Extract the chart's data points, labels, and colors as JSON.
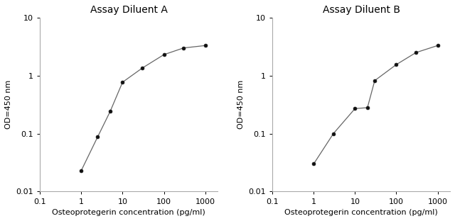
{
  "chart_A": {
    "title": "Assay Diluent A",
    "x": [
      1,
      2.5,
      5,
      10,
      30,
      100,
      300,
      1000
    ],
    "y": [
      0.023,
      0.088,
      0.24,
      0.77,
      1.35,
      2.3,
      3.0,
      3.3
    ]
  },
  "chart_B": {
    "title": "Assay Diluent B",
    "x": [
      1,
      3,
      10,
      20,
      30,
      100,
      300,
      1000
    ],
    "y": [
      0.03,
      0.1,
      0.27,
      0.28,
      0.82,
      1.55,
      2.5,
      3.3
    ]
  },
  "xlabel": "Osteoprotegerin concentration (pg/ml)",
  "ylabel": "OD=450 nm",
  "xlim": [
    0.1,
    2000
  ],
  "ylim": [
    0.01,
    10
  ],
  "line_color": "#666666",
  "marker_color": "#111111",
  "background_color": "#ffffff",
  "xticks": [
    0.1,
    1,
    10,
    100,
    1000
  ],
  "yticks": [
    0.01,
    0.1,
    1,
    10
  ],
  "xtick_labels": [
    "0.1",
    "1",
    "10",
    "100",
    "1000"
  ],
  "ytick_labels": [
    "0.01",
    "0.1",
    "1",
    "10"
  ],
  "title_fontsize": 10,
  "label_fontsize": 8,
  "tick_fontsize": 8
}
